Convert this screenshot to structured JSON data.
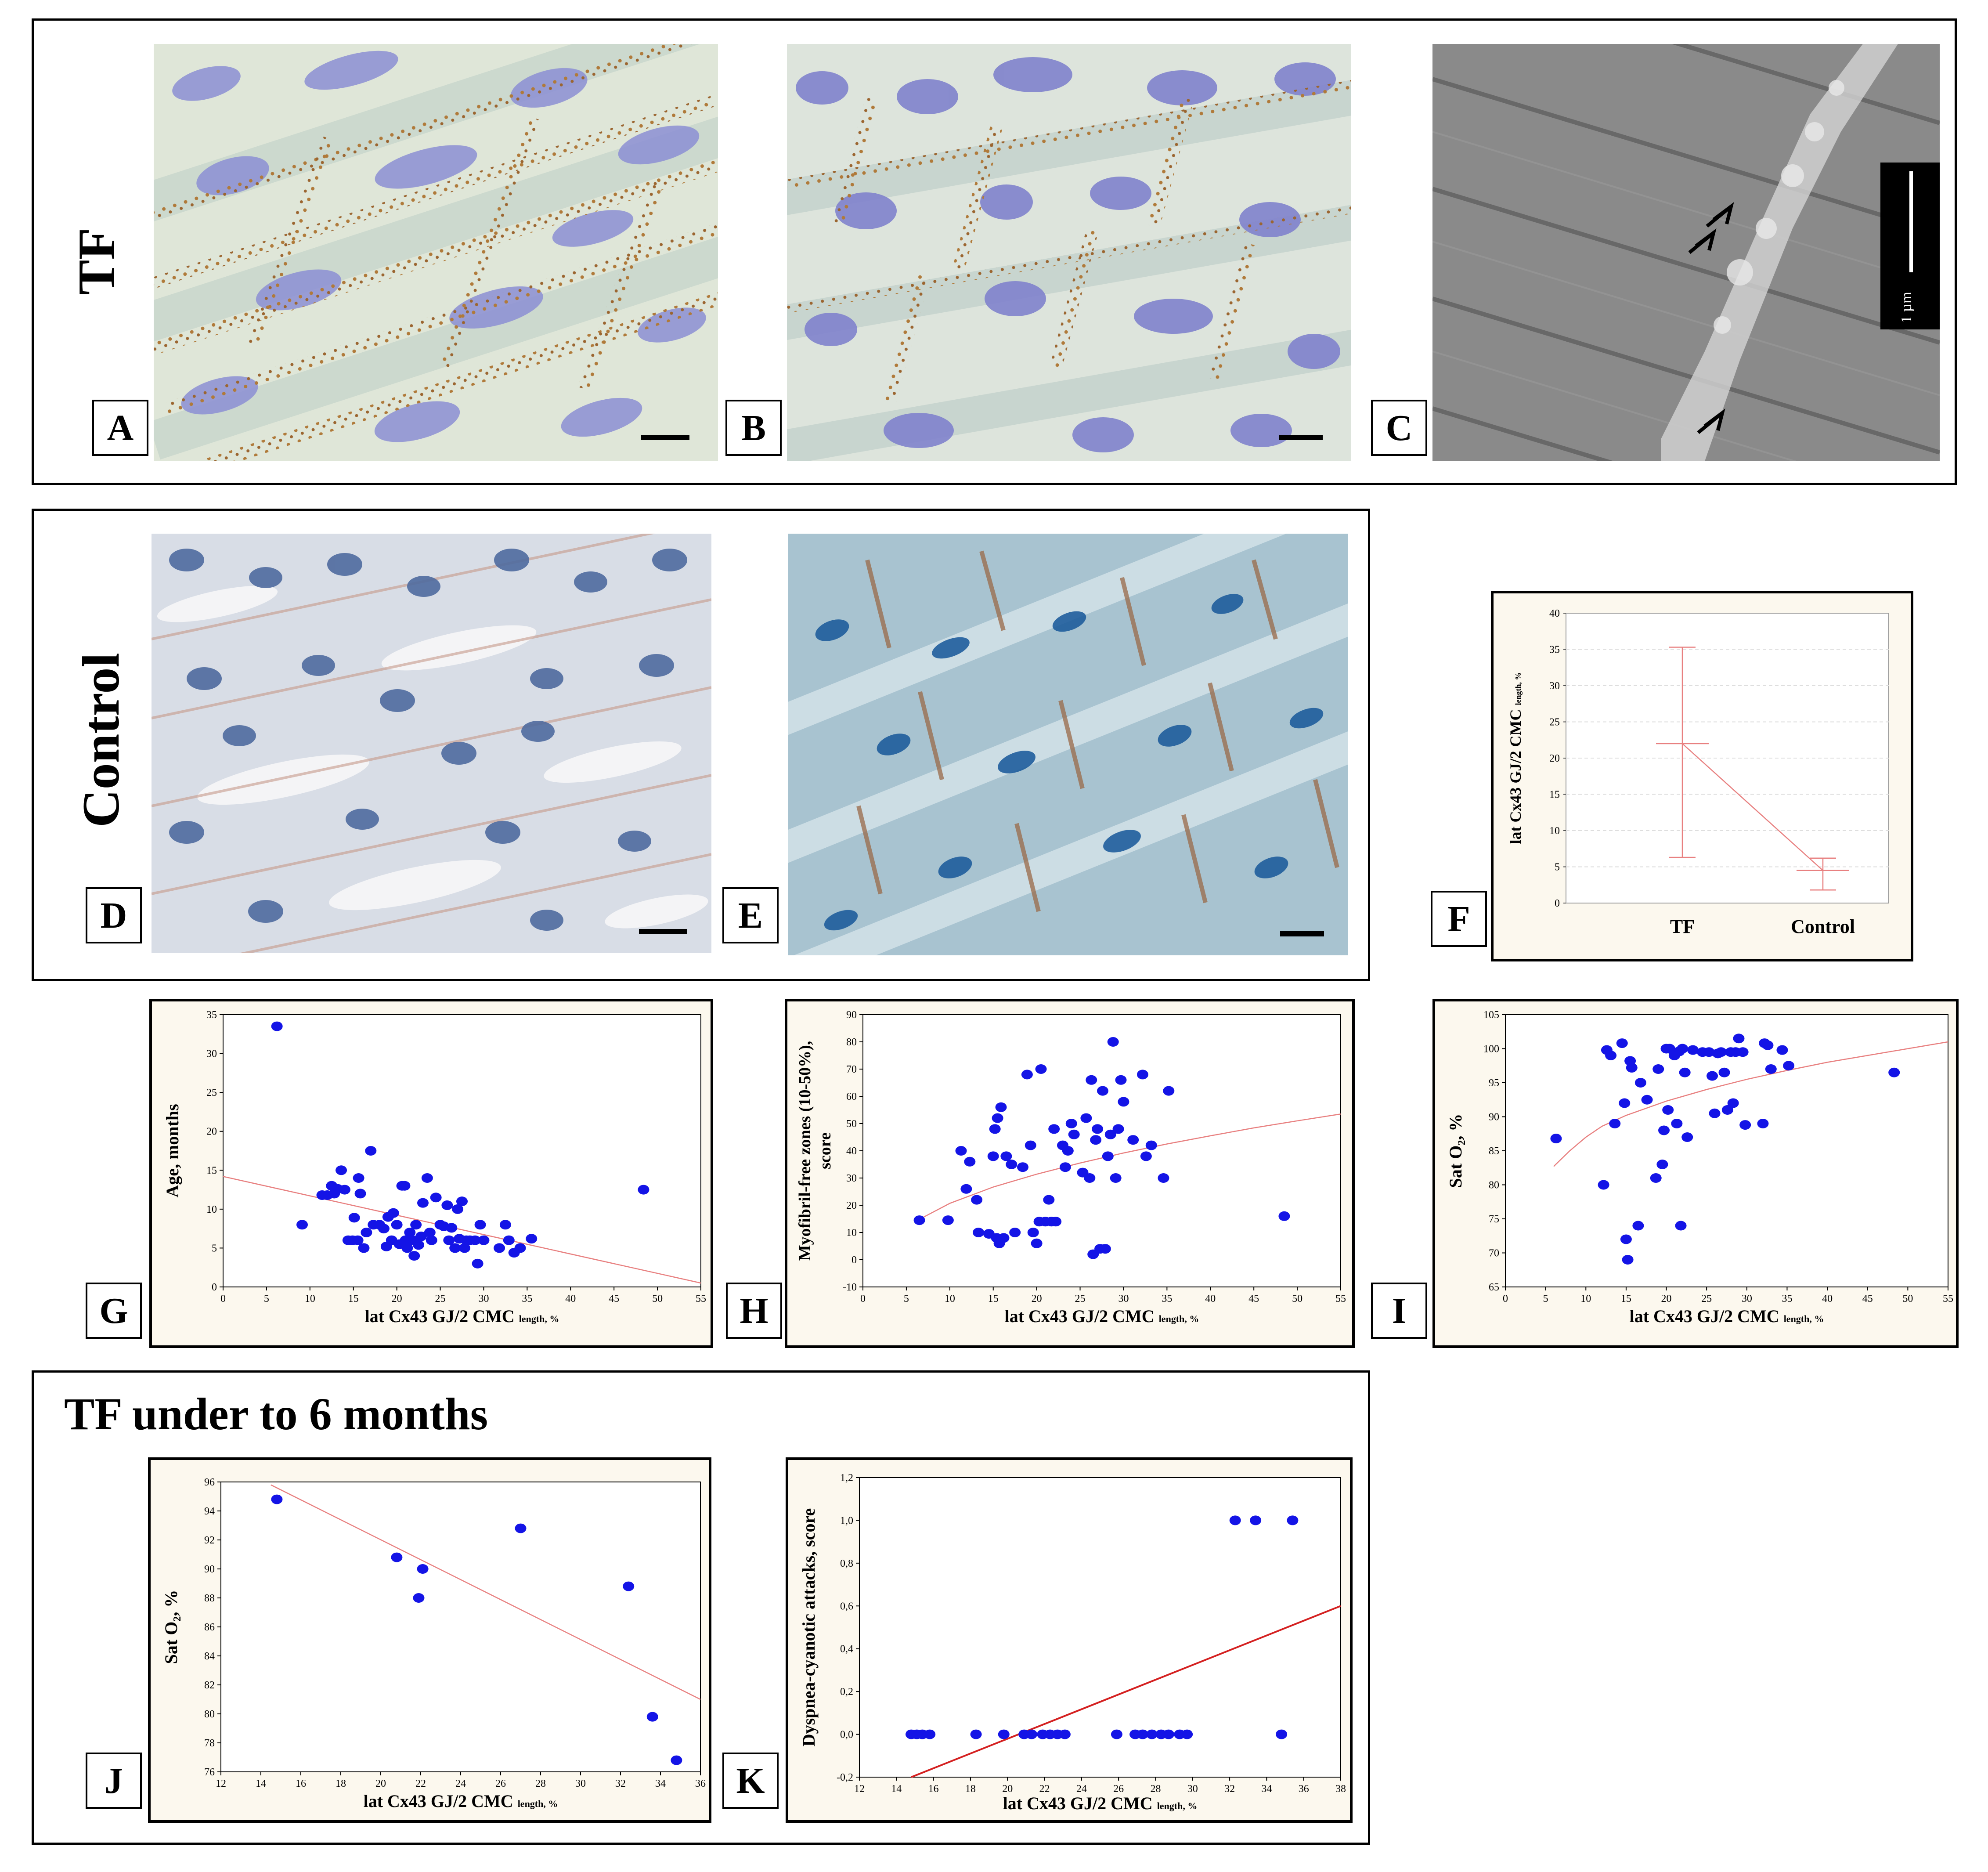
{
  "labels": {
    "tf": "TF",
    "control": "Control",
    "section_title": "TF under to 6 months"
  },
  "panel_labels": {
    "A": "A",
    "B": "B",
    "C": "C",
    "D": "D",
    "E": "E",
    "F": "F",
    "G": "G",
    "H": "H",
    "I": "I",
    "J": "J",
    "K": "K"
  },
  "scale_bar_text": "1 µm",
  "colors": {
    "point": "#1414e6",
    "fit": "#e88080",
    "fitK": "#d42020",
    "chart_bg": "#fcf8ee"
  },
  "chart_data": [
    {
      "id": "F",
      "type": "line",
      "title": "",
      "xlabel": "",
      "ylabel": "lat Cx43 GJ/2 CMC",
      "ylabel_sub": "length, %",
      "categories": [
        "TF",
        "Control"
      ],
      "series": [
        {
          "values": [
            22,
            4.5
          ],
          "error_low": [
            6.3,
            1.8
          ],
          "error_high": [
            35.3,
            6.2
          ]
        }
      ],
      "ylim": [
        0,
        40
      ],
      "yticks": [
        "0",
        "5",
        "10",
        "15",
        "20",
        "25",
        "30",
        "35",
        "40"
      ]
    },
    {
      "id": "G",
      "type": "scatter",
      "xlabel": "lat Cx43 GJ/2 CMC",
      "xlabel_sub": "length, %",
      "ylabel": "Age, months",
      "xlim": [
        0,
        55
      ],
      "ylim": [
        0,
        35
      ],
      "xticks": [
        "0",
        "5",
        "10",
        "15",
        "20",
        "25",
        "30",
        "35",
        "40",
        "45",
        "50",
        "55"
      ],
      "yticks": [
        "0",
        "5",
        "10",
        "15",
        "20",
        "25",
        "30",
        "35"
      ],
      "fit": [
        [
          0,
          14.2
        ],
        [
          55,
          0.5
        ]
      ],
      "points": [
        [
          6.2,
          33.5
        ],
        [
          9.1,
          8
        ],
        [
          11.4,
          11.8
        ],
        [
          12,
          11.8
        ],
        [
          12.5,
          13
        ],
        [
          12.8,
          12
        ],
        [
          13.2,
          12.6
        ],
        [
          13.6,
          15
        ],
        [
          14,
          12.5
        ],
        [
          14.4,
          6
        ],
        [
          14.9,
          6
        ],
        [
          15.1,
          8.9
        ],
        [
          15.5,
          6
        ],
        [
          15.6,
          14
        ],
        [
          15.8,
          12
        ],
        [
          16.2,
          5
        ],
        [
          16.5,
          7
        ],
        [
          17,
          17.5
        ],
        [
          17.3,
          8
        ],
        [
          18,
          8
        ],
        [
          18.5,
          7.5
        ],
        [
          18.8,
          5.2
        ],
        [
          19,
          9
        ],
        [
          19.4,
          6
        ],
        [
          19.6,
          9.5
        ],
        [
          20,
          8
        ],
        [
          20.3,
          5.5
        ],
        [
          20.6,
          13
        ],
        [
          20.9,
          13
        ],
        [
          21,
          6
        ],
        [
          21.2,
          5
        ],
        [
          21.5,
          7
        ],
        [
          21.8,
          6
        ],
        [
          22,
          4
        ],
        [
          22.2,
          8
        ],
        [
          22.5,
          5.4
        ],
        [
          22.8,
          6.5
        ],
        [
          23,
          10.8
        ],
        [
          23.5,
          14
        ],
        [
          23.8,
          7
        ],
        [
          24,
          6
        ],
        [
          24.5,
          11.5
        ],
        [
          25,
          8
        ],
        [
          25.4,
          7.8
        ],
        [
          25.8,
          10.5
        ],
        [
          26,
          6
        ],
        [
          26.3,
          7.6
        ],
        [
          26.7,
          5
        ],
        [
          27,
          10
        ],
        [
          27.2,
          6.2
        ],
        [
          27.5,
          11
        ],
        [
          27.8,
          5
        ],
        [
          28,
          6
        ],
        [
          28.4,
          6
        ],
        [
          29,
          6
        ],
        [
          29.3,
          3
        ],
        [
          29.6,
          8
        ],
        [
          30,
          6
        ],
        [
          31.8,
          5
        ],
        [
          32.5,
          8
        ],
        [
          32.9,
          6
        ],
        [
          33.5,
          4.4
        ],
        [
          34.2,
          5
        ],
        [
          35.5,
          6.2
        ],
        [
          48.4,
          12.5
        ]
      ]
    },
    {
      "id": "H",
      "type": "scatter",
      "xlabel": "lat Cx43 GJ/2 CMC",
      "xlabel_sub": "length, %",
      "ylabel": "Myofibril-free zones (10-50%), score",
      "xlim": [
        0,
        55
      ],
      "ylim": [
        -10,
        90
      ],
      "xticks": [
        "0",
        "5",
        "10",
        "15",
        "20",
        "25",
        "30",
        "35",
        "40",
        "45",
        "50",
        "55"
      ],
      "yticks": [
        "-10",
        "0",
        "10",
        "20",
        "30",
        "40",
        "50",
        "60",
        "70",
        "80",
        "90"
      ],
      "fit": [
        [
          6,
          14
        ],
        [
          10,
          20.7
        ],
        [
          15,
          26.7
        ],
        [
          20,
          31.4
        ],
        [
          25,
          35.5
        ],
        [
          30,
          39.2
        ],
        [
          35,
          42.5
        ],
        [
          40,
          45.5
        ],
        [
          45,
          48.4
        ],
        [
          50,
          51
        ],
        [
          55,
          53.5
        ]
      ],
      "points": [
        [
          6.5,
          14.5
        ],
        [
          9.8,
          14.5
        ],
        [
          11.3,
          40
        ],
        [
          11.9,
          26
        ],
        [
          12.3,
          36
        ],
        [
          13.1,
          22
        ],
        [
          13.3,
          10
        ],
        [
          14.5,
          9.5
        ],
        [
          15,
          38
        ],
        [
          15.2,
          48
        ],
        [
          15.4,
          8
        ],
        [
          15.5,
          52
        ],
        [
          15.7,
          6
        ],
        [
          15.9,
          56
        ],
        [
          16.2,
          8
        ],
        [
          16.5,
          38
        ],
        [
          17.1,
          35
        ],
        [
          17.5,
          10
        ],
        [
          18.4,
          34
        ],
        [
          18.9,
          68
        ],
        [
          19.3,
          42
        ],
        [
          19.6,
          10
        ],
        [
          20,
          6
        ],
        [
          20.3,
          14
        ],
        [
          20.5,
          70
        ],
        [
          21,
          14
        ],
        [
          21.4,
          22
        ],
        [
          21.7,
          14
        ],
        [
          22,
          48
        ],
        [
          22.2,
          14
        ],
        [
          23,
          42
        ],
        [
          23.3,
          34
        ],
        [
          23.6,
          40
        ],
        [
          24,
          50
        ],
        [
          24.3,
          46
        ],
        [
          25.3,
          32
        ],
        [
          25.7,
          52
        ],
        [
          26.1,
          30
        ],
        [
          26.3,
          66
        ],
        [
          26.5,
          2
        ],
        [
          26.8,
          44
        ],
        [
          27,
          48
        ],
        [
          27.3,
          4
        ],
        [
          27.6,
          62
        ],
        [
          27.9,
          4
        ],
        [
          28.2,
          38
        ],
        [
          28.5,
          46
        ],
        [
          28.8,
          80
        ],
        [
          29.1,
          30
        ],
        [
          29.4,
          48
        ],
        [
          29.7,
          66
        ],
        [
          30,
          58
        ],
        [
          31.1,
          44
        ],
        [
          32.2,
          68
        ],
        [
          32.6,
          38
        ],
        [
          33.2,
          42
        ],
        [
          34.6,
          30
        ],
        [
          35.2,
          62
        ],
        [
          48.5,
          16
        ]
      ]
    },
    {
      "id": "I",
      "type": "scatter",
      "xlabel": "lat Cx43 GJ/2 CMC",
      "xlabel_sub": "length, %",
      "ylabel": "Sat O₂, %",
      "xlim": [
        0,
        55
      ],
      "ylim": [
        65,
        105
      ],
      "xticks": [
        "0",
        "5",
        "10",
        "15",
        "20",
        "25",
        "30",
        "35",
        "40",
        "45",
        "50",
        "55"
      ],
      "yticks": [
        "65",
        "70",
        "75",
        "80",
        "85",
        "90",
        "95",
        "100",
        "105"
      ],
      "fit": [
        [
          6,
          82.7
        ],
        [
          8,
          85
        ],
        [
          10,
          87
        ],
        [
          12,
          88.6
        ],
        [
          15,
          90.2
        ],
        [
          20,
          92.3
        ],
        [
          25,
          94
        ],
        [
          30,
          95.5
        ],
        [
          35,
          96.8
        ],
        [
          40,
          98
        ],
        [
          45,
          99
        ],
        [
          50,
          100
        ],
        [
          55,
          101
        ]
      ],
      "points": [
        [
          6.3,
          86.8
        ],
        [
          12.2,
          80
        ],
        [
          12.6,
          99.8
        ],
        [
          13.1,
          99
        ],
        [
          13.6,
          89
        ],
        [
          14.5,
          100.8
        ],
        [
          14.8,
          92
        ],
        [
          15,
          72
        ],
        [
          15.2,
          69
        ],
        [
          15.5,
          98.2
        ],
        [
          15.7,
          97.2
        ],
        [
          16.5,
          74
        ],
        [
          16.8,
          95
        ],
        [
          17.6,
          92.5
        ],
        [
          18.7,
          81
        ],
        [
          19,
          97
        ],
        [
          19.5,
          83
        ],
        [
          19.7,
          88
        ],
        [
          20,
          100
        ],
        [
          20.2,
          91
        ],
        [
          20.4,
          100
        ],
        [
          21,
          99
        ],
        [
          21.3,
          89
        ],
        [
          21.6,
          99.6
        ],
        [
          21.8,
          74
        ],
        [
          22,
          100
        ],
        [
          22.3,
          96.5
        ],
        [
          22.6,
          87
        ],
        [
          23.3,
          99.8
        ],
        [
          24.5,
          99.5
        ],
        [
          25.3,
          99.5
        ],
        [
          25.7,
          96
        ],
        [
          26,
          90.5
        ],
        [
          26.4,
          99.3
        ],
        [
          26.8,
          99.5
        ],
        [
          27.2,
          96.5
        ],
        [
          27.6,
          91
        ],
        [
          28,
          99.5
        ],
        [
          28.3,
          92
        ],
        [
          28.6,
          99.5
        ],
        [
          29,
          101.5
        ],
        [
          29.5,
          99.5
        ],
        [
          29.8,
          88.8
        ],
        [
          32,
          89
        ],
        [
          32.2,
          100.8
        ],
        [
          32.6,
          100.5
        ],
        [
          33,
          97
        ],
        [
          34.4,
          99.8
        ],
        [
          35.2,
          97.5
        ],
        [
          48.3,
          96.5
        ]
      ]
    },
    {
      "id": "J",
      "type": "scatter",
      "xlabel": "lat Cx43 GJ/2 CMC",
      "xlabel_sub": "length, %",
      "ylabel": "Sat O₂, %",
      "xlim": [
        12,
        36
      ],
      "ylim": [
        76,
        96
      ],
      "xticks": [
        "12",
        "14",
        "16",
        "18",
        "20",
        "22",
        "24",
        "26",
        "28",
        "30",
        "32",
        "34",
        "36"
      ],
      "yticks": [
        "76",
        "78",
        "80",
        "82",
        "84",
        "86",
        "88",
        "90",
        "92",
        "94",
        "96"
      ],
      "fit": [
        [
          14.5,
          95.8
        ],
        [
          36,
          81
        ]
      ],
      "points": [
        [
          14.8,
          94.8
        ],
        [
          20.8,
          90.8
        ],
        [
          21.9,
          88
        ],
        [
          22.1,
          90
        ],
        [
          27,
          92.8
        ],
        [
          32.4,
          88.8
        ],
        [
          33.6,
          79.8
        ],
        [
          34.8,
          76.8
        ]
      ]
    },
    {
      "id": "K",
      "type": "scatter",
      "xlabel": "lat Cx43 GJ/2 CMC",
      "xlabel_sub": "length, %",
      "ylabel": "Dyspnea-cyanotic attacks, score",
      "xlim": [
        12,
        38
      ],
      "ylim": [
        -0.2,
        1.2
      ],
      "xticks": [
        "12",
        "14",
        "16",
        "18",
        "20",
        "22",
        "24",
        "26",
        "28",
        "30",
        "32",
        "34",
        "36",
        "38"
      ],
      "yticks": [
        "-0,2",
        "0,0",
        "0,2",
        "0,4",
        "0,6",
        "0,8",
        "1,0",
        "1,2"
      ],
      "fit": [
        [
          14.8,
          -0.2
        ],
        [
          38,
          0.6
        ]
      ],
      "points": [
        [
          14.8,
          0
        ],
        [
          15.1,
          0
        ],
        [
          15.4,
          0
        ],
        [
          15.8,
          0
        ],
        [
          18.3,
          0
        ],
        [
          19.8,
          0
        ],
        [
          20.9,
          0
        ],
        [
          21.3,
          0
        ],
        [
          21.9,
          0
        ],
        [
          22.3,
          0
        ],
        [
          22.7,
          0
        ],
        [
          23.1,
          0
        ],
        [
          25.9,
          0
        ],
        [
          26.9,
          0
        ],
        [
          27.3,
          0
        ],
        [
          27.8,
          0
        ],
        [
          28.3,
          0
        ],
        [
          28.7,
          0
        ],
        [
          29.3,
          0
        ],
        [
          29.7,
          0
        ],
        [
          32.3,
          1
        ],
        [
          33.4,
          1
        ],
        [
          34.8,
          0
        ],
        [
          35.4,
          1
        ]
      ]
    }
  ]
}
